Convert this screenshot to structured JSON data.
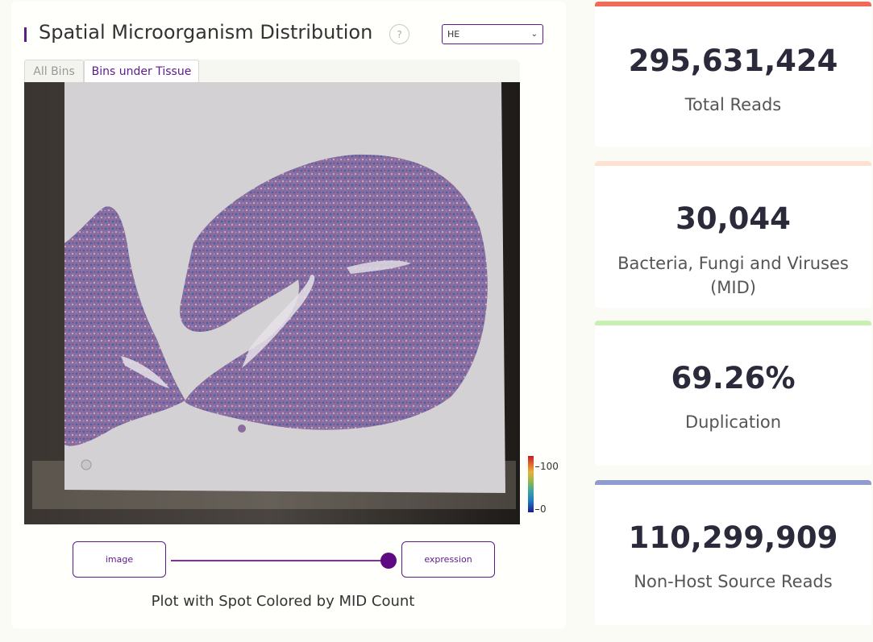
{
  "panel": {
    "title": "Spatial Microorganism Distribution",
    "help_glyph": "?",
    "stain_select": {
      "value": "HE"
    },
    "tabs": [
      {
        "label": "All Bins",
        "active": false
      },
      {
        "label": "Bins under Tissue",
        "active": true
      }
    ],
    "colorbar": {
      "max_label": "100",
      "min_label": "0"
    },
    "slider": {
      "left_label": "image",
      "right_label": "expression",
      "value": 1.0
    },
    "caption": "Plot with Spot Colored by MID Count"
  },
  "stats": [
    {
      "value": "295,631,424",
      "label": "Total Reads",
      "color": "#f26a55"
    },
    {
      "value": "30,044",
      "label": "Bacteria, Fungi and Viruses (MID)",
      "color": "#fde2d2"
    },
    {
      "value": "69.26%",
      "label": "Duplication",
      "color": "#c8f0b2"
    },
    {
      "value": "110,299,909",
      "label": "Non-Host Source Reads",
      "color": "#8f9ccd"
    }
  ],
  "colors": {
    "accent": "#5c1a8a"
  }
}
